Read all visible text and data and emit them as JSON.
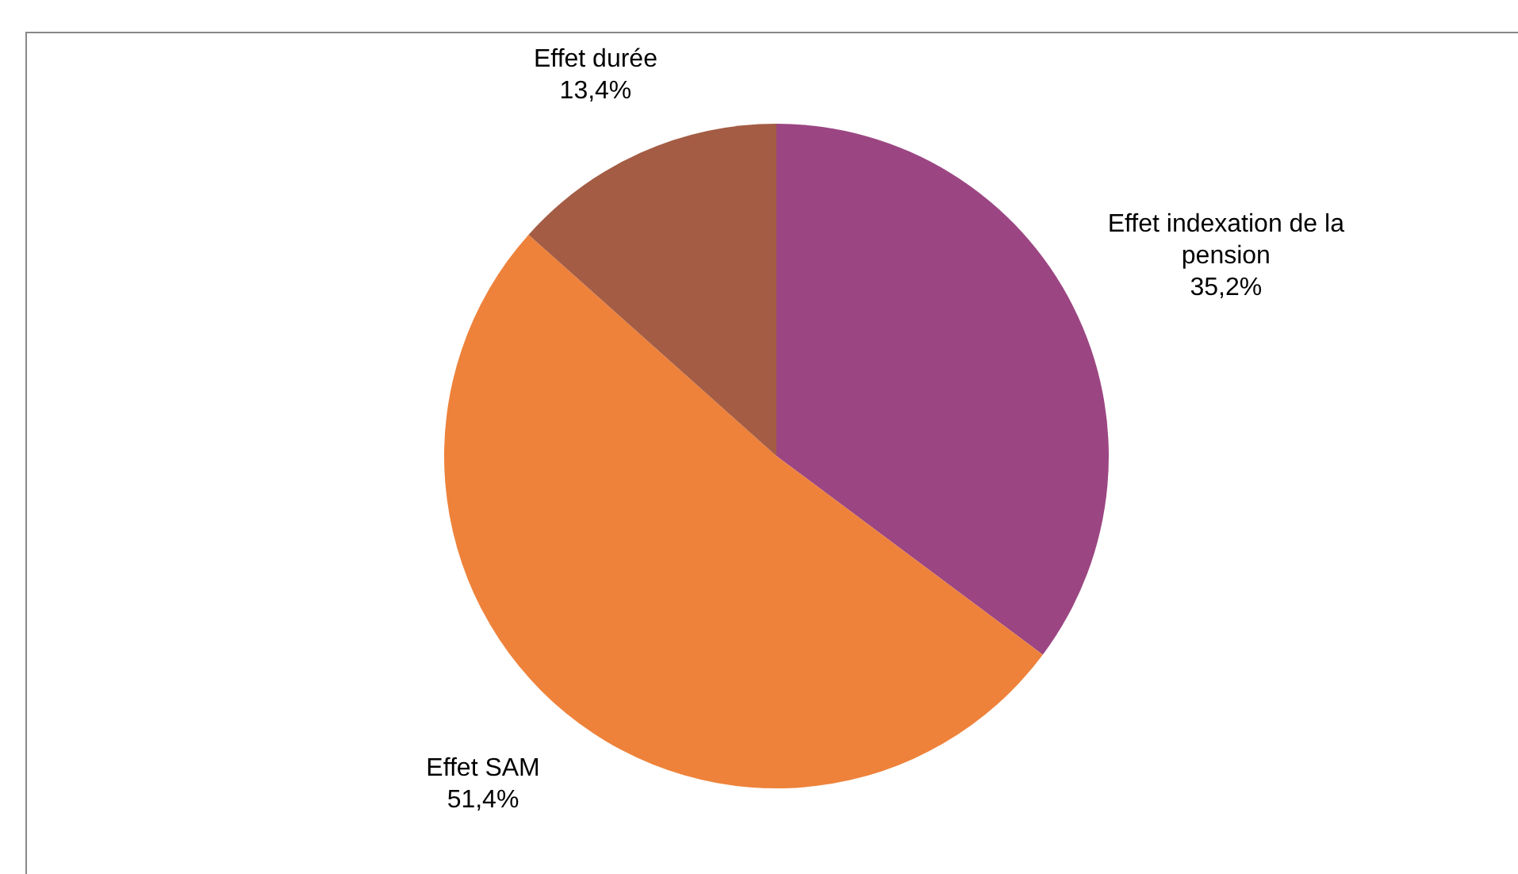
{
  "chart_data": {
    "type": "pie",
    "categories": [
      "Effet indexation de la pension",
      "Effet SAM",
      "Effet durée"
    ],
    "values": [
      35.2,
      51.4,
      13.4
    ],
    "colors": [
      "#9b4682",
      "#ee823b",
      "#a45c44"
    ],
    "value_labels": [
      "35,2%",
      "51,4%",
      "13,4%"
    ],
    "legend": false
  }
}
